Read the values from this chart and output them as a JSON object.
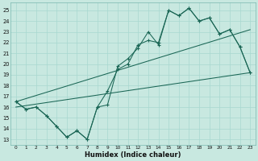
{
  "xlabel": "Humidex (Indice chaleur)",
  "bg_color": "#c8e8e0",
  "grid_color": "#a8d8d0",
  "line_color": "#1a6655",
  "xlim": [
    -0.5,
    23.5
  ],
  "ylim": [
    12.5,
    25.7
  ],
  "yticks": [
    13,
    14,
    15,
    16,
    17,
    18,
    19,
    20,
    21,
    22,
    23,
    24,
    25
  ],
  "xticks": [
    0,
    1,
    2,
    3,
    4,
    5,
    6,
    7,
    8,
    9,
    10,
    11,
    12,
    13,
    14,
    15,
    16,
    17,
    18,
    19,
    20,
    21,
    22,
    23
  ],
  "series_jagged_x": [
    0,
    1,
    2,
    3,
    4,
    5,
    6,
    7,
    8,
    9,
    10,
    11,
    12,
    13,
    14,
    15,
    16,
    17,
    18,
    19,
    20,
    21,
    22,
    23
  ],
  "series_jagged_y": [
    16.5,
    15.8,
    16.0,
    15.2,
    14.2,
    13.2,
    13.8,
    13.0,
    16.0,
    17.5,
    19.5,
    20.0,
    21.8,
    22.2,
    22.0,
    25.0,
    24.5,
    25.2,
    24.0,
    24.3,
    22.8,
    23.2,
    21.6,
    19.2
  ],
  "series_upper_x": [
    0,
    1,
    2,
    3,
    4,
    5,
    6,
    7,
    8,
    9,
    10,
    11,
    12,
    13,
    14,
    15,
    16,
    17,
    18,
    19,
    20,
    21,
    22,
    23
  ],
  "series_upper_y": [
    16.5,
    15.8,
    16.0,
    15.2,
    14.2,
    13.2,
    13.8,
    13.0,
    16.0,
    16.2,
    19.8,
    20.5,
    21.5,
    23.0,
    21.8,
    25.0,
    24.5,
    25.2,
    24.0,
    24.3,
    22.8,
    23.2,
    21.6,
    19.2
  ],
  "series_line1_x": [
    0,
    23
  ],
  "series_line1_y": [
    16.5,
    23.2
  ],
  "series_line2_x": [
    0,
    23
  ],
  "series_line2_y": [
    16.0,
    19.2
  ]
}
